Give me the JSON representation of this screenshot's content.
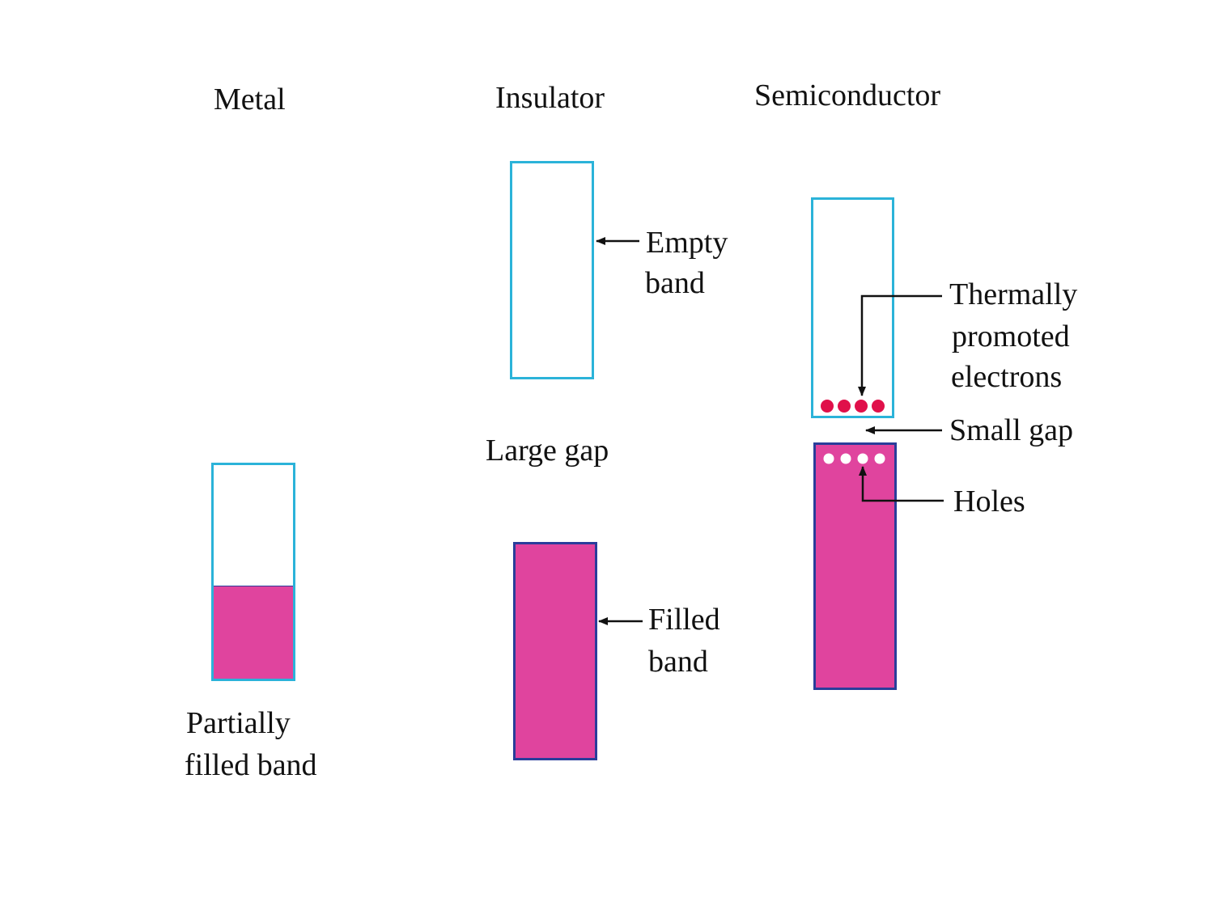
{
  "columns": {
    "metal": "Metal",
    "insulator": "Insulator",
    "semiconductor": "Semiconductor"
  },
  "labels": {
    "partially_filled_line1": "Partially",
    "partially_filled_line2": "filled band",
    "empty_band_line1": "Empty",
    "empty_band_line2": "band",
    "large_gap": "Large gap",
    "filled_band_line1": "Filled",
    "filled_band_line2": "band",
    "thermally_line1": "Thermally",
    "thermally_line2": "promoted",
    "thermally_line3": "electrons",
    "small_gap": "Small gap",
    "holes": "Holes"
  },
  "metal_band_fill_fraction": 0.43,
  "electron_count": 4,
  "hole_count": 4,
  "colors": {
    "band_outline": "#2bb3d9",
    "band_outline_filled": "#2a3d9a",
    "filled_band": "#e0449e",
    "electron": "#e0104a",
    "hole": "#ffffff",
    "arrow": "#111111"
  }
}
